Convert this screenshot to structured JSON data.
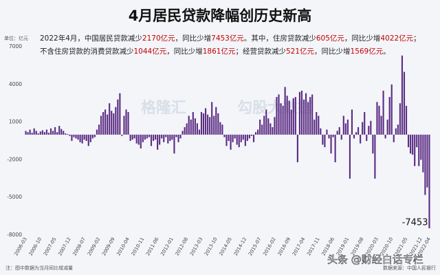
{
  "chart_data": {
    "type": "bar",
    "title": "4月居民贷款降幅创历史新高",
    "unit_label": "单位：亿元",
    "annotation": [
      [
        {
          "text": "2022年4月，中国居民贷款减少",
          "color": "#222222"
        },
        {
          "text": "2170亿元",
          "color": "#c00000"
        },
        {
          "text": "，同比少增",
          "color": "#222222"
        },
        {
          "text": "7453亿元",
          "color": "#c00000"
        },
        {
          "text": "。其中，住房贷款减少",
          "color": "#222222"
        },
        {
          "text": "605亿元",
          "color": "#c00000"
        },
        {
          "text": "，同比少增",
          "color": "#222222"
        },
        {
          "text": "4022亿元",
          "color": "#c00000"
        },
        {
          "text": "；",
          "color": "#222222"
        }
      ],
      [
        {
          "text": "不含住房贷款的消费贷款减少",
          "color": "#222222"
        },
        {
          "text": "1044亿元",
          "color": "#c00000"
        },
        {
          "text": "，同比少增",
          "color": "#222222"
        },
        {
          "text": "1861亿元",
          "color": "#c00000"
        },
        {
          "text": "；经营贷款减少",
          "color": "#222222"
        },
        {
          "text": "521亿元",
          "color": "#c00000"
        },
        {
          "text": "，同比少增",
          "color": "#222222"
        },
        {
          "text": "1569亿元",
          "color": "#c00000"
        },
        {
          "text": "。",
          "color": "#222222"
        }
      ]
    ],
    "note": "注：图中数据为当月同比增减量",
    "source": "数据来源：中国人民银行",
    "watermarks": [
      "格隆汇",
      "勾股大数据",
      "头条 @财经白话专栏"
    ],
    "color": "#5b2c83",
    "grid": false,
    "ylim": [
      -8000,
      7000
    ],
    "yticks": [
      -8000,
      -5000,
      -2000,
      1000,
      4000,
      7000
    ],
    "categories": [
      "2006-03",
      null,
      null,
      null,
      null,
      null,
      null,
      "2006-10",
      null,
      null,
      null,
      null,
      null,
      null,
      "2007-05",
      null,
      null,
      null,
      null,
      null,
      null,
      "2007-12",
      null,
      null,
      null,
      null,
      null,
      null,
      "2008-07",
      null,
      null,
      null,
      null,
      null,
      null,
      "2009-02",
      null,
      null,
      null,
      null,
      null,
      null,
      "2009-09",
      null,
      null,
      null,
      null,
      null,
      null,
      "2010-04",
      null,
      null,
      null,
      null,
      null,
      null,
      "2010-11",
      null,
      null,
      null,
      null,
      null,
      null,
      "2011-06",
      null,
      null,
      null,
      null,
      null,
      null,
      "2012-01",
      null,
      null,
      null,
      null,
      null,
      null,
      "2012-08",
      null,
      null,
      null,
      null,
      null,
      null,
      "2013-03",
      null,
      null,
      null,
      null,
      null,
      null,
      "2013-10",
      null,
      null,
      null,
      null,
      null,
      null,
      "2014-05",
      null,
      null,
      null,
      null,
      null,
      null,
      "2014-12",
      null,
      null,
      null,
      null,
      null,
      null,
      "2015-07",
      null,
      null,
      null,
      null,
      null,
      null,
      "2016-02",
      null,
      null,
      null,
      null,
      null,
      null,
      "2016-09",
      null,
      null,
      null,
      null,
      null,
      null,
      "2017-04",
      null,
      null,
      null,
      null,
      null,
      null,
      "2017-11",
      null,
      null,
      null,
      null,
      null,
      null,
      "2018-06",
      null,
      null,
      null,
      null,
      null,
      null,
      "2019-01",
      null,
      null,
      null,
      null,
      null,
      null,
      "2019-08",
      null,
      null,
      null,
      null,
      null,
      null,
      "2020-03",
      null,
      null,
      null,
      null,
      null,
      null,
      "2020-10",
      null,
      null,
      null,
      null,
      null,
      null,
      "2021-05",
      null,
      null,
      null,
      null,
      null,
      null,
      "2021-12",
      null,
      null,
      null,
      "2022-04"
    ],
    "values": [
      300,
      200,
      400,
      150,
      500,
      300,
      100,
      250,
      350,
      200,
      400,
      150,
      500,
      300,
      600,
      200,
      700,
      450,
      300,
      100,
      50,
      -100,
      -500,
      -200,
      -300,
      -400,
      -600,
      -700,
      -400,
      -500,
      -900,
      -600,
      -300,
      -200,
      400,
      800,
      1500,
      1800,
      2000,
      1600,
      2500,
      1900,
      1700,
      2200,
      2800,
      3300,
      -100,
      1500,
      2000,
      1800,
      -500,
      -400,
      -300,
      -700,
      -800,
      -1100,
      -600,
      -400,
      -300,
      -200,
      -900,
      -500,
      -400,
      -1200,
      -800,
      -300,
      -600,
      -200,
      -700,
      -500,
      -400,
      -1500,
      -200,
      -600,
      -300,
      300,
      600,
      900,
      1500,
      1200,
      1800,
      1300,
      900,
      400,
      1800,
      1700,
      2100,
      1600,
      1400,
      2600,
      1500,
      2200,
      1700,
      1000,
      800,
      -200,
      -900,
      -500,
      -1200,
      -600,
      -300,
      -800,
      -1000,
      -600,
      -400,
      -900,
      -500,
      -300,
      -100,
      -600,
      200,
      400,
      1200,
      800,
      1500,
      2000,
      1300,
      900,
      600,
      1400,
      3000,
      3200,
      2500,
      2300,
      3800,
      3100,
      2700,
      2000,
      2900,
      3000,
      -2200,
      3400,
      3500,
      2800,
      3300,
      2600,
      3000,
      3200,
      1200,
      1800,
      1500,
      500,
      -800,
      -1000,
      400,
      -300,
      -1500,
      -200,
      -2200,
      300,
      600,
      -400,
      1500,
      900,
      1200,
      -3500,
      2000,
      -300,
      200,
      600,
      -700,
      1000,
      1800,
      -500,
      700,
      1100,
      -1500,
      -3500,
      2600,
      2300,
      1500,
      3500,
      -300,
      1200,
      3000,
      4000,
      -600,
      500,
      800,
      2500,
      6300,
      5000,
      2300,
      -1000,
      -1500,
      -1600,
      -2500,
      -1000,
      -2500,
      -2000,
      -3000,
      -4800,
      -4200,
      -7453
    ]
  }
}
